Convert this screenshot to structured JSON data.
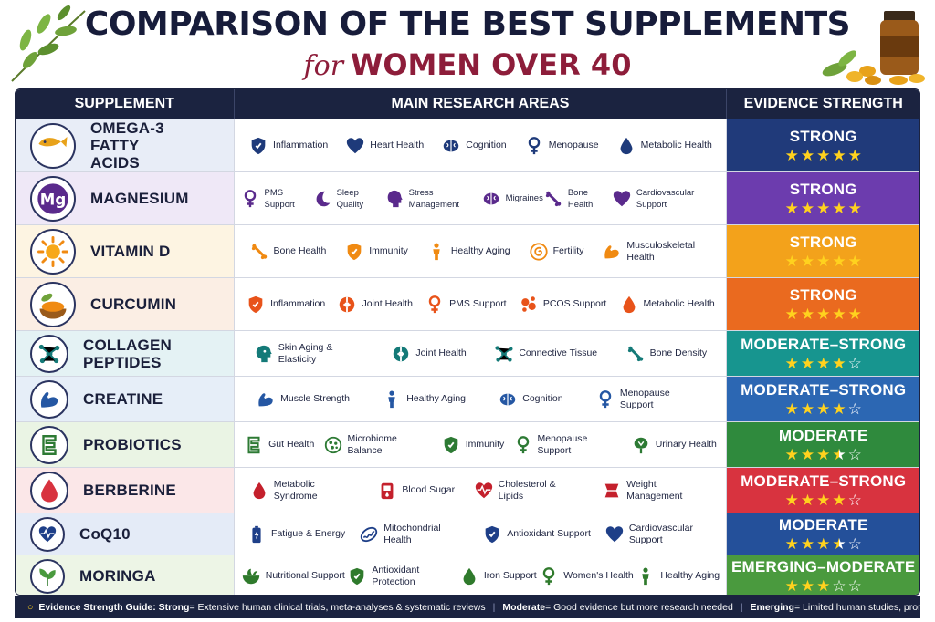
{
  "header": {
    "title": "COMPARISON OF THE BEST SUPPLEMENTS",
    "subtitle_for": "for",
    "subtitle_main": "WOMEN OVER 40"
  },
  "table": {
    "headers": [
      "SUPPLEMENT",
      "MAIN RESEARCH AREAS",
      "EVIDENCE STRENGTH"
    ]
  },
  "rows": [
    {
      "name": "OMEGA-3 FATTY ACIDS",
      "icon": "fish-icon",
      "tint": "#e8edf7",
      "areas": [
        {
          "label": "Inflammation",
          "icon": "shield-icon"
        },
        {
          "label": "Heart Health",
          "icon": "heart-icon"
        },
        {
          "label": "Cognition",
          "icon": "brain-icon"
        },
        {
          "label": "Menopause",
          "icon": "female-symbol-icon"
        },
        {
          "label": "Metabolic Health",
          "icon": "drop-icon"
        }
      ],
      "evidence": "STRONG",
      "stars": 5,
      "ev_color": "#203a7a",
      "area_color": "#1e3a7a"
    },
    {
      "name": "MAGNESIUM",
      "icon": "mg-icon",
      "tint": "#efe8f7",
      "areas": [
        {
          "label": "PMS Support",
          "icon": "female-symbol-icon"
        },
        {
          "label": "Sleep Quality",
          "icon": "moon-icon"
        },
        {
          "label": "Stress Management",
          "icon": "head-icon"
        },
        {
          "label": "Migraines",
          "icon": "brain-icon"
        },
        {
          "label": "Bone Health",
          "icon": "bone-icon"
        },
        {
          "label": "Cardiovascular Support",
          "icon": "heart-icon"
        }
      ],
      "evidence": "STRONG",
      "stars": 5,
      "ev_color": "#6c3cae",
      "area_color": "#5a2a8c"
    },
    {
      "name": "VITAMIN D",
      "icon": "sun-icon",
      "tint": "#fdf4e2",
      "areas": [
        {
          "label": "Bone Health",
          "icon": "bone-icon"
        },
        {
          "label": "Immunity",
          "icon": "shield-icon"
        },
        {
          "label": "Healthy Aging",
          "icon": "person-icon"
        },
        {
          "label": "Fertility",
          "icon": "embryo-icon"
        },
        {
          "label": "Musculoskeletal Health",
          "icon": "muscle-icon"
        }
      ],
      "evidence": "STRONG",
      "stars": 5,
      "ev_color": "#f3a21b",
      "area_color": "#f08a12"
    },
    {
      "name": "CURCUMIN",
      "icon": "turmeric-icon",
      "tint": "#fbeee4",
      "areas": [
        {
          "label": "Inflammation",
          "icon": "shield-icon"
        },
        {
          "label": "Joint Health",
          "icon": "joint-icon"
        },
        {
          "label": "PMS Support",
          "icon": "female-symbol-icon"
        },
        {
          "label": "PCOS Support",
          "icon": "cells-icon"
        },
        {
          "label": "Metabolic Health",
          "icon": "drop-icon"
        }
      ],
      "evidence": "STRONG",
      "stars": 5,
      "ev_color": "#ea6a1f",
      "area_color": "#e8531a"
    },
    {
      "name": "COLLAGEN PEPTIDES",
      "icon": "molecule-icon",
      "tint": "#e4f2f4",
      "areas": [
        {
          "label": "Skin Aging & Elasticity",
          "icon": "face-icon"
        },
        {
          "label": "Joint Health",
          "icon": "joint-icon"
        },
        {
          "label": "Connective Tissue",
          "icon": "molecule-icon"
        },
        {
          "label": "Bone Density",
          "icon": "bone-icon"
        }
      ],
      "evidence": "MODERATE–STRONG",
      "stars": 4,
      "ev_color": "#17958f",
      "area_color": "#147a78"
    },
    {
      "name": "CREATINE",
      "icon": "muscle-icon",
      "tint": "#e6eef8",
      "areas": [
        {
          "label": "Muscle Strength",
          "icon": "muscle-icon"
        },
        {
          "label": "Healthy Aging",
          "icon": "person-icon"
        },
        {
          "label": "Cognition",
          "icon": "brain-icon"
        },
        {
          "label": "Menopause Support",
          "icon": "female-symbol-icon"
        }
      ],
      "evidence": "MODERATE–STRONG",
      "stars": 4,
      "ev_color": "#2c67b3",
      "area_color": "#2557a3"
    },
    {
      "name": "PROBIOTICS",
      "icon": "gut-icon",
      "tint": "#eaf4e4",
      "areas": [
        {
          "label": "Gut Health",
          "icon": "gut-icon"
        },
        {
          "label": "Microbiome Balance",
          "icon": "microbe-icon"
        },
        {
          "label": "Immunity",
          "icon": "shield-icon"
        },
        {
          "label": "Menopause Support",
          "icon": "female-symbol-icon"
        },
        {
          "label": "Urinary Health",
          "icon": "flower-icon"
        }
      ],
      "evidence": "MODERATE",
      "stars": 3.5,
      "ev_color": "#2f8a3d",
      "area_color": "#2d7a34"
    },
    {
      "name": "BERBERINE",
      "icon": "blood-drop-icon",
      "tint": "#fbe7e8",
      "areas": [
        {
          "label": "Metabolic Syndrome",
          "icon": "drop-icon"
        },
        {
          "label": "Blood Sugar",
          "icon": "glucometer-icon"
        },
        {
          "label": "Cholesterol & Lipids",
          "icon": "heartbeat-icon"
        },
        {
          "label": "Weight Management",
          "icon": "waist-icon"
        }
      ],
      "evidence": "MODERATE–STRONG",
      "stars": 4,
      "ev_color": "#d8333f",
      "area_color": "#c4202c"
    },
    {
      "name": "CoQ10",
      "icon": "heartbeat-icon",
      "tint": "#e4ebf7",
      "areas": [
        {
          "label": "Fatigue & Energy",
          "icon": "battery-icon"
        },
        {
          "label": "Mitochondrial Health",
          "icon": "mitochondria-icon"
        },
        {
          "label": "Antioxidant Support",
          "icon": "shield-icon"
        },
        {
          "label": "Cardiovascular Support",
          "icon": "heart-icon"
        }
      ],
      "evidence": "MODERATE",
      "stars": 3.5,
      "ev_color": "#24509a",
      "area_color": "#1e3f88"
    },
    {
      "name": "MORINGA",
      "icon": "leaf-icon",
      "tint": "#edf5e6",
      "areas": [
        {
          "label": "Nutritional Support",
          "icon": "bowl-icon"
        },
        {
          "label": "Antioxidant Protection",
          "icon": "shield-icon"
        },
        {
          "label": "Iron Support",
          "icon": "drop-icon"
        },
        {
          "label": "Women's Health",
          "icon": "female-symbol-icon"
        },
        {
          "label": "Healthy Aging",
          "icon": "person-icon"
        }
      ],
      "evidence": "EMERGING–MODERATE",
      "stars": 3,
      "ev_color": "#4a9a3e",
      "area_color": "#2f7a2c"
    }
  ],
  "footer": {
    "guide_label": "Evidence Strength Guide:",
    "strong": "Strong",
    "strong_desc": " = Extensive human clinical trials, meta-analyses & systematic reviews",
    "moderate": "Moderate",
    "moderate_desc": " = Good evidence but more research needed",
    "emerging": "Emerging",
    "emerging_desc": " = Limited human studies, promising results"
  }
}
